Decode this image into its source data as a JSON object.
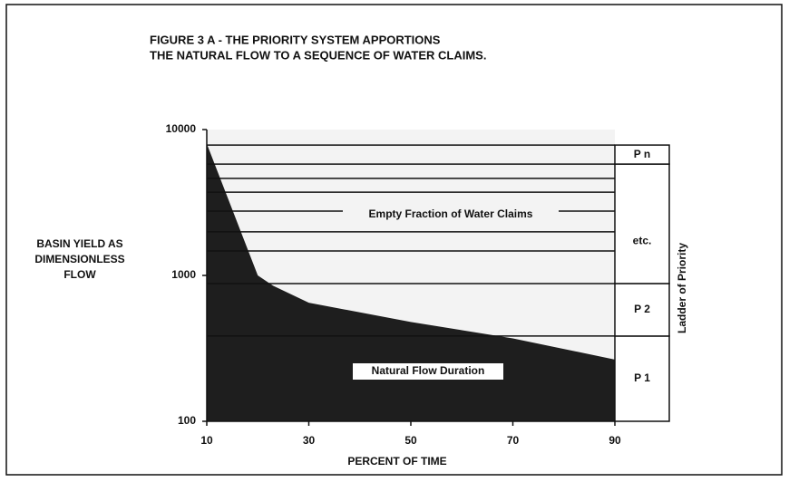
{
  "chart_data": {
    "type": "area",
    "title": [
      "FIGURE 3 A - THE PRIORITY SYSTEM APPORTIONS",
      "THE NATURAL FLOW TO A SEQUENCE OF WATER CLAIMS."
    ],
    "ylabel": [
      "BASIN YIELD AS",
      "DIMENSIONLESS",
      "FLOW"
    ],
    "xlabel": "PERCENT OF TIME",
    "x": [
      10,
      20,
      23,
      30,
      50,
      70,
      90
    ],
    "values": [
      8000,
      1000,
      850,
      650,
      480,
      370,
      265
    ],
    "color": "#1e1e1e",
    "xlim": [
      10,
      90
    ],
    "xticks": [
      10,
      30,
      50,
      70,
      90
    ],
    "ylim": [
      100,
      10000
    ],
    "yticks": [
      100,
      1000,
      10000
    ],
    "log_y": true,
    "claim_levels": [
      1470,
      1990,
      2760,
      3720,
      4630
    ],
    "ladder_label": "Ladder of Priority",
    "ladder": [
      {
        "label": "P 1",
        "from": 100,
        "to": 384
      },
      {
        "label": "P 2",
        "from": 384,
        "to": 880
      },
      {
        "label": "etc.",
        "from": 880,
        "to": 5800
      },
      {
        "label": "P n",
        "from": 5800,
        "to": 7830
      }
    ],
    "annotations": [
      "Empty Fraction of Water Claims",
      "Natural Flow Duration"
    ]
  }
}
